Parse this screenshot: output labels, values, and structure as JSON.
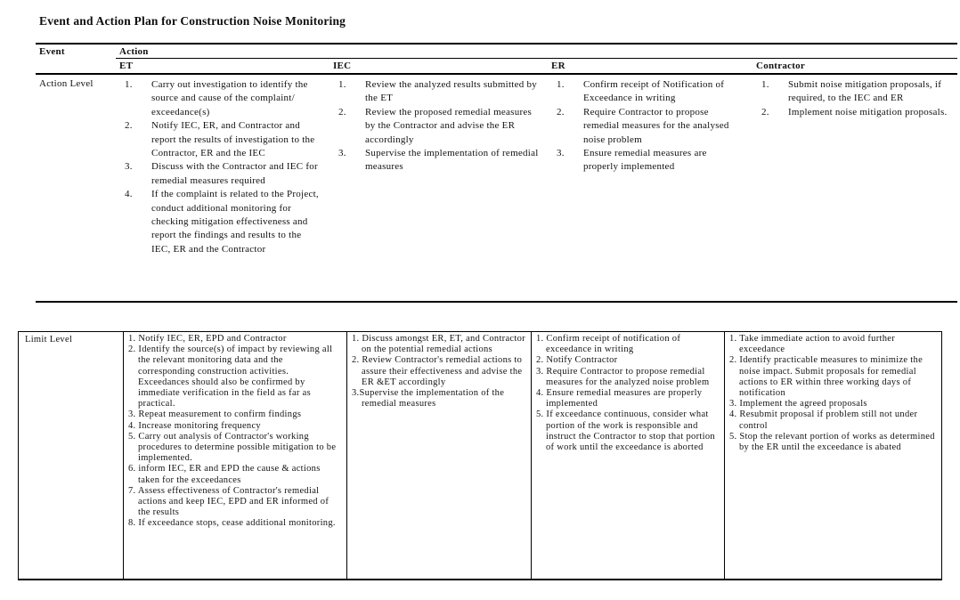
{
  "page": {
    "title": "Event and Action Plan for Construction Noise Monitoring"
  },
  "table1": {
    "header": {
      "event": "Event",
      "action": "Action",
      "columns": [
        "ET",
        "IEC",
        "ER",
        "Contractor"
      ]
    },
    "row_label": "Action Level",
    "cells": {
      "et": [
        {
          "n": "1.",
          "t": "Carry out investigation to identify the source and cause of the complaint/ exceedance(s)"
        },
        {
          "n": "2.",
          "t": "Notify IEC, ER, and Contractor and report the results of investigation to the Contractor, ER and the IEC"
        },
        {
          "n": "3.",
          "t": "Discuss with the Contractor and IEC for remedial measures required"
        },
        {
          "n": "4.",
          "t": "If the complaint is related to the Project, conduct additional monitoring for checking mitigation effectiveness and report the findings and results to the IEC, ER and the Contractor"
        }
      ],
      "iec": [
        {
          "n": "1.",
          "t": "Review the analyzed results submitted by the ET"
        },
        {
          "n": "2.",
          "t": "Review the proposed remedial measures by the Contractor and advise the ER accordingly"
        },
        {
          "n": "3.",
          "t": "Supervise the implementation of remedial measures"
        }
      ],
      "er": [
        {
          "n": "1.",
          "t": "Confirm receipt of Notification of Exceedance in writing"
        },
        {
          "n": "2.",
          "t": "Require Contractor to propose remedial measures for the analysed noise problem"
        },
        {
          "n": "3.",
          "t": "Ensure remedial measures are properly implemented"
        }
      ],
      "contractor": [
        {
          "n": "1.",
          "t": "Submit noise mitigation proposals, if required, to the IEC and ER"
        },
        {
          "n": "2.",
          "t": "Implement noise mitigation proposals."
        }
      ]
    }
  },
  "table2": {
    "row_label": "Limit Level",
    "cells": {
      "et": [
        {
          "t": "1. Notify IEC, ER, EPD and Contractor"
        },
        {
          "t": "2. Identify the source(s) of impact by reviewing all the relevant monitoring data and the corresponding construction activities. Exceedances should also be confirmed by immediate verification in the field as far as practical."
        },
        {
          "t": "3. Repeat measurement to confirm findings"
        },
        {
          "t": "4. Increase monitoring frequency"
        },
        {
          "t": "5. Carry out analysis of Contractor's working procedures to determine possible mitigation to be implemented."
        },
        {
          "t": "6. inform IEC, ER and EPD the cause & actions taken for the exceedances"
        },
        {
          "t": "7. Assess effectiveness of Contractor's remedial actions and keep IEC, EPD and ER informed of the results"
        },
        {
          "t": "8. If exceedance stops, cease additional monitoring."
        }
      ],
      "iec": [
        {
          "t": "1. Discuss amongst ER, ET, and Contractor on the potential remedial actions"
        },
        {
          "t": "2. Review Contractor's remedial actions to assure their effectiveness and advise the ER &ET accordingly"
        },
        {
          "t": "3.Supervise the implementation of the remedial measures"
        }
      ],
      "er": [
        {
          "t": "1. Confirm receipt of notification of exceedance in writing"
        },
        {
          "t": "2. Notify Contractor"
        },
        {
          "t": "3. Require Contractor to propose remedial measures for the analyzed noise problem"
        },
        {
          "t": "4. Ensure remedial measures are properly implemented"
        },
        {
          "t": "5. If exceedance continuous, consider what portion of the work is responsible and instruct the Contractor to stop that portion of work until the exceedance is aborted"
        }
      ],
      "contractor": [
        {
          "t": "1. Take immediate action to avoid further exceedance"
        },
        {
          "t": "2. Identify practicable measures to minimize the noise impact.  Submit proposals for remedial actions to ER within three working days of notification"
        },
        {
          "t": "3. Implement the agreed proposals"
        },
        {
          "t": "4. Resubmit proposal if problem still not under control"
        },
        {
          "t": "5. Stop the relevant portion of works as determined by the ER until the exceedance is abated"
        }
      ]
    }
  }
}
